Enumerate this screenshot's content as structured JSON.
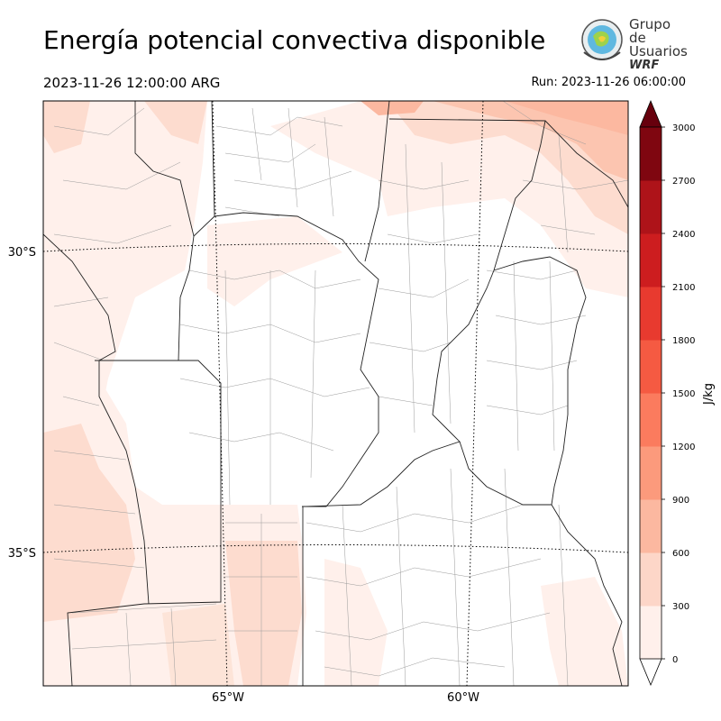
{
  "header": {
    "title": "Energía potencial convectiva disponible",
    "valid_time": "2023-11-26 12:00:00 ARG",
    "run_time": "Run: 2023-11-26 06:00:00"
  },
  "logo": {
    "line1": "Grupo de",
    "line2": "Usuarios",
    "line3": "WRF",
    "icon": "wrf-users-globe-logo"
  },
  "map": {
    "lat_labels": [
      "30°S",
      "35°S"
    ],
    "lon_labels": [
      "65°W",
      "60°W"
    ]
  },
  "colorbar": {
    "unit": "J/kg",
    "ticks": [
      "0",
      "300",
      "600",
      "900",
      "1200",
      "1500",
      "1800",
      "2100",
      "2400",
      "2700",
      "3000"
    ],
    "colors": [
      "#fff0eb",
      "#fdd6c8",
      "#fcb8a0",
      "#fc9a7c",
      "#fb7b5e",
      "#f55a42",
      "#e83a2f",
      "#cd1d1f",
      "#ae1319",
      "#7f0610"
    ],
    "extend_top_color": "#67000d"
  }
}
